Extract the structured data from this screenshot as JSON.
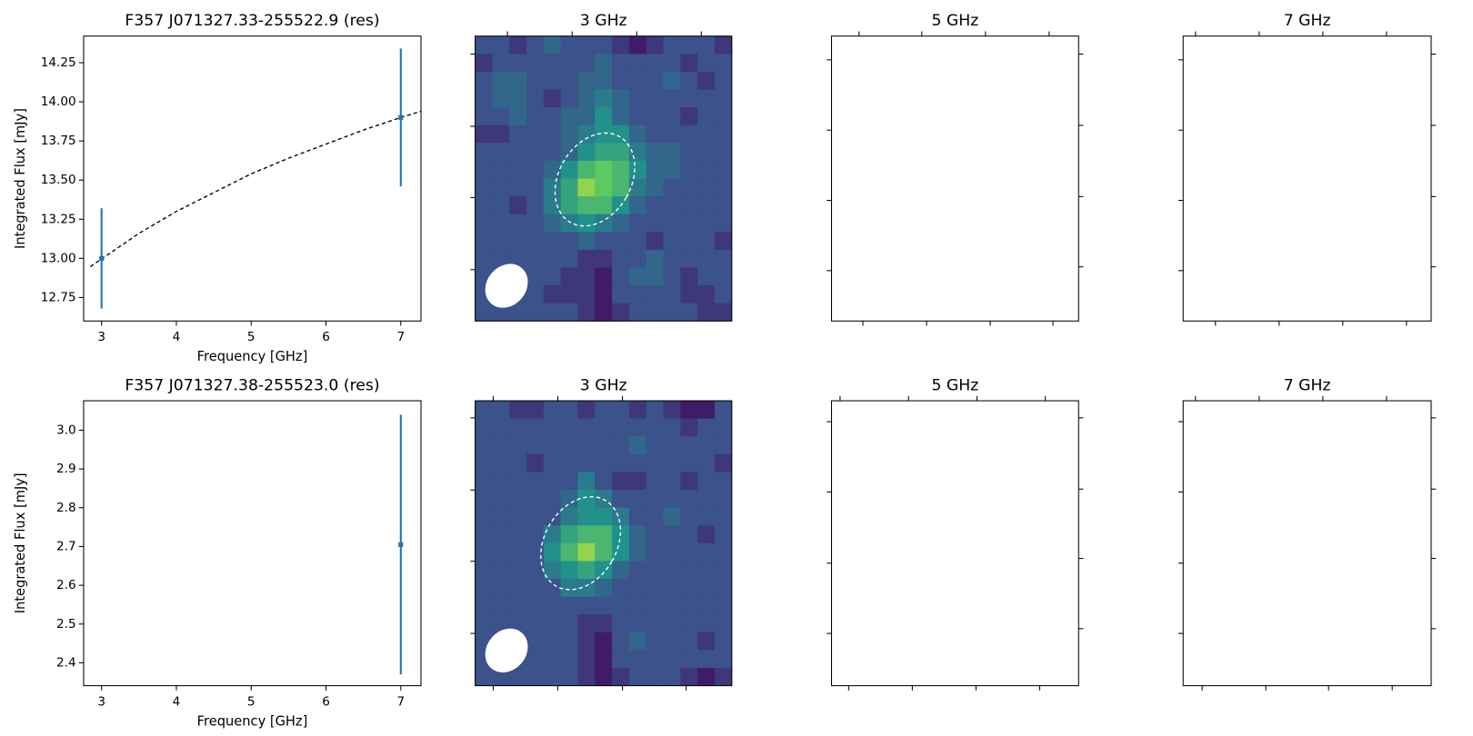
{
  "chart_data": [
    {
      "type": "errorbar",
      "title": "F357 J071327.33-255522.9 (res)",
      "xlabel": "Frequency [GHz]",
      "ylabel": "Integrated Flux [mJy]",
      "x": [
        3,
        7
      ],
      "values": [
        13.0,
        13.9
      ],
      "errors": [
        0.32,
        0.44
      ],
      "color": "#1f77b4",
      "fit": {
        "x": [
          2.85,
          3.5,
          4,
          4.5,
          5,
          5.5,
          6,
          6.5,
          7,
          7.27
        ],
        "values": [
          12.947,
          13.16,
          13.3,
          13.42,
          13.54,
          13.64,
          13.73,
          13.82,
          13.9,
          13.94
        ],
        "color": "#000000"
      },
      "xlim": [
        2.76,
        7.27
      ],
      "xticks": [
        3,
        4,
        5,
        6,
        7
      ],
      "ylim": [
        12.6,
        14.42
      ],
      "yticks": [
        12.75,
        {
          "value": 13.0,
          "label": "13.00"
        },
        13.25,
        {
          "value": 13.5,
          "label": "13.50"
        },
        13.75,
        {
          "value": 14.0,
          "label": "14.00"
        },
        14.25
      ]
    },
    {
      "type": "image",
      "title": "3 GHz",
      "colormap": "viridis",
      "vlim": [
        0,
        12
      ],
      "grid": [
        [
          3,
          3,
          2,
          3,
          4,
          3,
          3,
          3,
          2,
          1,
          2,
          3,
          3,
          3,
          2
        ],
        [
          2,
          3,
          3,
          3,
          3,
          3,
          3,
          4,
          3,
          3,
          3,
          3,
          2,
          3,
          3
        ],
        [
          3,
          4,
          4,
          3,
          3,
          3,
          4,
          4,
          3,
          3,
          3,
          4,
          3,
          2,
          3
        ],
        [
          3,
          4,
          4,
          3,
          2,
          3,
          4,
          5,
          4,
          3,
          3,
          3,
          3,
          3,
          3
        ],
        [
          3,
          3,
          4,
          3,
          3,
          4,
          4,
          6,
          4,
          3,
          3,
          3,
          2,
          3,
          3
        ],
        [
          2,
          2,
          3,
          3,
          3,
          4,
          5,
          6,
          6,
          4,
          3,
          3,
          3,
          3,
          3
        ],
        [
          3,
          3,
          3,
          3,
          3,
          4,
          6,
          7,
          7,
          5,
          4,
          4,
          3,
          3,
          3
        ],
        [
          3,
          3,
          3,
          3,
          4,
          6,
          8,
          9,
          8,
          6,
          4,
          4,
          3,
          3,
          3
        ],
        [
          3,
          3,
          3,
          3,
          5,
          7,
          10,
          9,
          8,
          5,
          4,
          3,
          3,
          3,
          3
        ],
        [
          3,
          3,
          2,
          3,
          5,
          7,
          8,
          8,
          6,
          4,
          3,
          3,
          3,
          3,
          3
        ],
        [
          3,
          3,
          3,
          3,
          4,
          5,
          6,
          5,
          4,
          3,
          3,
          3,
          3,
          3,
          3
        ],
        [
          3,
          3,
          3,
          3,
          3,
          3,
          4,
          3,
          3,
          3,
          2,
          3,
          3,
          3,
          2
        ],
        [
          3,
          3,
          3,
          3,
          3,
          3,
          2,
          2,
          3,
          3,
          4,
          3,
          3,
          3,
          3
        ],
        [
          3,
          3,
          3,
          3,
          3,
          2,
          2,
          1,
          3,
          4,
          4,
          3,
          2,
          3,
          3
        ],
        [
          3,
          3,
          3,
          3,
          2,
          2,
          2,
          1,
          3,
          3,
          3,
          3,
          2,
          2,
          3
        ],
        [
          3,
          3,
          3,
          3,
          3,
          3,
          2,
          1,
          2,
          3,
          3,
          3,
          3,
          2,
          2
        ]
      ]
    },
    {
      "type": "empty",
      "title": "5 GHz"
    },
    {
      "type": "empty",
      "title": "7 GHz"
    },
    {
      "type": "errorbar",
      "title": "F357 J071327.38-255523.0 (res)",
      "xlabel": "Frequency [GHz]",
      "ylabel": "Integrated Flux [mJy]",
      "x": [
        7
      ],
      "values": [
        2.705
      ],
      "errors": [
        0.335
      ],
      "color": "#1f77b4",
      "xlim": [
        2.76,
        7.27
      ],
      "xticks": [
        3,
        4,
        5,
        6,
        7
      ],
      "ylim": [
        2.341,
        3.076
      ],
      "yticks": [
        2.4,
        2.5,
        2.6,
        2.7,
        2.8,
        2.9,
        {
          "value": 3.0,
          "label": "3.0"
        }
      ]
    },
    {
      "type": "image",
      "title": "3 GHz",
      "colormap": "viridis",
      "vlim": [
        0,
        12
      ],
      "grid": [
        [
          3,
          3,
          2,
          2,
          3,
          3,
          2,
          3,
          3,
          2,
          3,
          2,
          1,
          1,
          3
        ],
        [
          3,
          3,
          3,
          3,
          3,
          3,
          3,
          3,
          3,
          3,
          3,
          3,
          2,
          3,
          3
        ],
        [
          3,
          3,
          3,
          3,
          3,
          3,
          3,
          3,
          3,
          4,
          3,
          3,
          3,
          3,
          3
        ],
        [
          3,
          3,
          3,
          2,
          3,
          3,
          3,
          3,
          3,
          3,
          3,
          3,
          3,
          3,
          2
        ],
        [
          3,
          3,
          3,
          3,
          3,
          3,
          5,
          3,
          2,
          2,
          3,
          3,
          2,
          3,
          3
        ],
        [
          3,
          3,
          3,
          3,
          3,
          4,
          6,
          5,
          3,
          3,
          3,
          3,
          3,
          3,
          3
        ],
        [
          3,
          3,
          3,
          3,
          3,
          5,
          6,
          6,
          5,
          3,
          3,
          4,
          3,
          3,
          3
        ],
        [
          3,
          3,
          3,
          3,
          5,
          7,
          8,
          8,
          6,
          4,
          3,
          3,
          3,
          2,
          3
        ],
        [
          3,
          3,
          3,
          3,
          6,
          8,
          10,
          8,
          6,
          4,
          3,
          3,
          3,
          3,
          3
        ],
        [
          3,
          3,
          3,
          3,
          5,
          6,
          7,
          6,
          4,
          3,
          3,
          3,
          3,
          3,
          3
        ],
        [
          3,
          3,
          3,
          3,
          3,
          5,
          5,
          4,
          3,
          3,
          3,
          3,
          3,
          3,
          3
        ],
        [
          3,
          3,
          3,
          3,
          3,
          3,
          3,
          3,
          3,
          3,
          3,
          3,
          3,
          3,
          3
        ],
        [
          3,
          3,
          3,
          3,
          3,
          3,
          2,
          2,
          3,
          3,
          3,
          3,
          3,
          3,
          3
        ],
        [
          3,
          3,
          3,
          3,
          3,
          3,
          2,
          1,
          3,
          4,
          3,
          3,
          3,
          2,
          3
        ],
        [
          3,
          3,
          3,
          3,
          3,
          3,
          2,
          1,
          3,
          3,
          3,
          3,
          3,
          3,
          3
        ],
        [
          3,
          3,
          3,
          3,
          3,
          3,
          2,
          1,
          2,
          3,
          3,
          3,
          2,
          1,
          2
        ]
      ]
    },
    {
      "type": "empty",
      "title": "5 GHz"
    },
    {
      "type": "empty",
      "title": "7 GHz"
    }
  ]
}
